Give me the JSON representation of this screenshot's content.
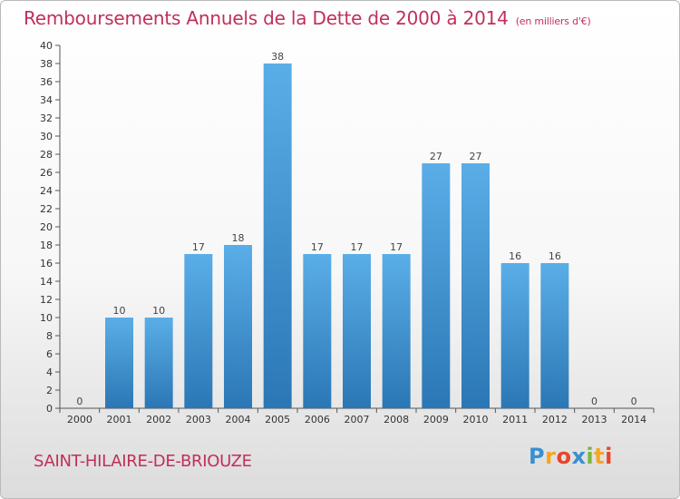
{
  "header": {
    "title": "Remboursements Annuels de la Dette de 2000 à 2014",
    "unit": "(en milliers d'€)"
  },
  "footer": {
    "town": "SAINT-HILAIRE-DE-BRIOUZE",
    "logo": [
      "P",
      "r",
      "o",
      "x",
      "i",
      "t",
      "i"
    ]
  },
  "colors": {
    "accent": "#c0305a",
    "bar_top": "#5aaee8",
    "bar_bottom": "#2b77b5"
  },
  "chart_data": {
    "type": "bar",
    "title": "Remboursements Annuels de la Dette de 2000 à 2014",
    "xlabel": "",
    "ylabel": "",
    "categories": [
      "2000",
      "2001",
      "2002",
      "2003",
      "2004",
      "2005",
      "2006",
      "2007",
      "2008",
      "2009",
      "2010",
      "2011",
      "2012",
      "2013",
      "2014"
    ],
    "values": [
      0,
      10,
      10,
      17,
      18,
      38,
      17,
      17,
      17,
      27,
      27,
      16,
      16,
      0,
      0
    ],
    "ylim": [
      0,
      40
    ],
    "yticks": [
      0,
      2,
      4,
      6,
      8,
      10,
      12,
      14,
      16,
      18,
      20,
      22,
      24,
      26,
      28,
      30,
      32,
      34,
      36,
      38,
      40
    ],
    "grid": false,
    "data_labels": true
  }
}
